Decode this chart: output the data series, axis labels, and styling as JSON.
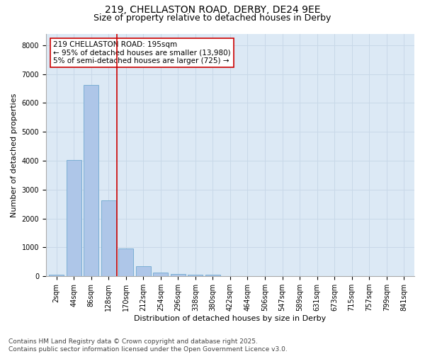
{
  "title_line1": "219, CHELLASTON ROAD, DERBY, DE24 9EE",
  "title_line2": "Size of property relative to detached houses in Derby",
  "xlabel": "Distribution of detached houses by size in Derby",
  "ylabel": "Number of detached properties",
  "categories": [
    "2sqm",
    "44sqm",
    "86sqm",
    "128sqm",
    "170sqm",
    "212sqm",
    "254sqm",
    "296sqm",
    "338sqm",
    "380sqm",
    "422sqm",
    "464sqm",
    "506sqm",
    "547sqm",
    "589sqm",
    "631sqm",
    "673sqm",
    "715sqm",
    "757sqm",
    "799sqm",
    "841sqm"
  ],
  "values": [
    60,
    4020,
    6620,
    2620,
    960,
    340,
    135,
    90,
    55,
    50,
    0,
    0,
    0,
    0,
    0,
    0,
    0,
    0,
    0,
    0,
    0
  ],
  "bar_color": "#aec6e8",
  "bar_edge_color": "#6fa8d0",
  "vline_x": 3.5,
  "vline_color": "#cc0000",
  "annotation_text": "219 CHELLASTON ROAD: 195sqm\n← 95% of detached houses are smaller (13,980)\n5% of semi-detached houses are larger (725) →",
  "annotation_box_facecolor": "#ffffff",
  "annotation_box_edgecolor": "#cc0000",
  "ylim": [
    0,
    8400
  ],
  "yticks": [
    0,
    1000,
    2000,
    3000,
    4000,
    5000,
    6000,
    7000,
    8000
  ],
  "grid_color": "#c8d8e8",
  "background_color": "#dce9f5",
  "footer_line1": "Contains HM Land Registry data © Crown copyright and database right 2025.",
  "footer_line2": "Contains public sector information licensed under the Open Government Licence v3.0.",
  "title1_fontsize": 10,
  "title2_fontsize": 9,
  "label_fontsize": 8,
  "tick_fontsize": 7,
  "annotation_fontsize": 7.5,
  "footer_fontsize": 6.5
}
